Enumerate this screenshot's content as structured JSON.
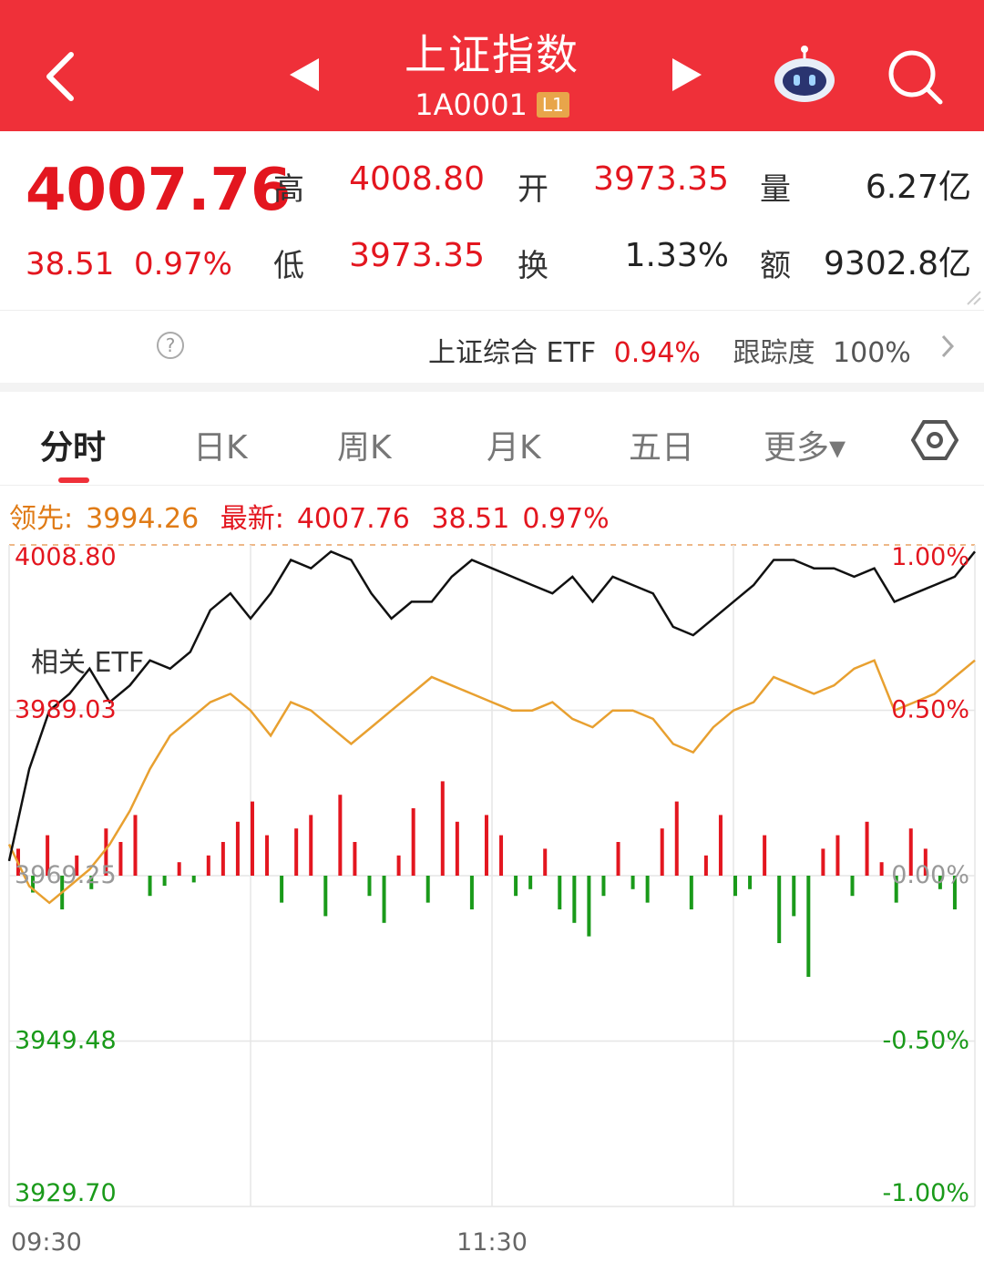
{
  "header": {
    "title": "上证指数",
    "code": "1A0001",
    "level_badge": "L1",
    "bg_color": "#ef3039"
  },
  "quote": {
    "price": "4007.76",
    "change": "38.51",
    "change_pct": "0.97%",
    "high_label": "高",
    "high": "4008.80",
    "low_label": "低",
    "low": "3973.35",
    "open_label": "开",
    "open": "3973.35",
    "turnover_label": "换",
    "turnover": "1.33%",
    "volume_label": "量",
    "volume": "6.27亿",
    "amount_label": "额",
    "amount": "9302.8亿"
  },
  "etf": {
    "label": "相关 ETF",
    "name": "上证综合 ETF",
    "change": "0.94%",
    "tracking_label": "跟踪度",
    "tracking": "100%"
  },
  "tabs": [
    {
      "label": "分时",
      "active": true
    },
    {
      "label": "日K"
    },
    {
      "label": "周K"
    },
    {
      "label": "月K"
    },
    {
      "label": "五日"
    },
    {
      "label": "更多▾"
    }
  ],
  "leader_bar": {
    "lead_label": "领先:",
    "lead_value": "3994.26",
    "latest_label": "最新:",
    "latest_value": "4007.76",
    "change": "38.51",
    "change_pct": "0.97%"
  },
  "chart_data": {
    "type": "line",
    "y_left_ticks": [
      "4008.80",
      "3989.03",
      "3969.25",
      "3949.48",
      "3929.70"
    ],
    "y_right_ticks": [
      "1.00%",
      "0.50%",
      "0.00%",
      "-0.50%",
      "-1.00%"
    ],
    "x_ticks": [
      "09:30",
      "11:30"
    ],
    "ylim": [
      3929.7,
      4008.8
    ],
    "colors": {
      "price": "#111111",
      "leader": "#e8a030",
      "up": "#e3161f",
      "down": "#1a9a1a"
    },
    "series": [
      {
        "x": [
          0,
          5,
          10,
          15,
          20,
          25,
          30,
          35,
          40,
          45,
          50,
          55,
          60,
          65,
          70,
          75,
          80,
          85,
          90,
          95,
          100,
          105,
          110,
          115,
          120,
          125,
          130,
          135,
          140,
          145,
          150,
          155,
          160,
          165,
          170,
          175,
          180,
          185,
          190,
          195,
          200,
          205,
          210,
          215,
          220,
          225,
          230,
          235,
          240
        ],
        "values": [
          3971,
          3982,
          3989,
          3991,
          3994,
          3990,
          3992,
          3995,
          3994,
          3996,
          4001,
          4003,
          4000,
          4003,
          4007,
          4006,
          4008,
          4007,
          4003,
          4000,
          4002,
          4002,
          4005,
          4007,
          4006,
          4005,
          4004,
          4003,
          4005,
          4002,
          4005,
          4004,
          4003,
          3999,
          3998,
          4000,
          4002,
          4004,
          4007,
          4007,
          4006,
          4006,
          4005,
          4006,
          4002,
          4003,
          4004,
          4005,
          4008
        ]
      },
      {
        "x": [
          0,
          5,
          10,
          15,
          20,
          25,
          30,
          35,
          40,
          45,
          50,
          55,
          60,
          65,
          70,
          75,
          80,
          85,
          90,
          95,
          100,
          105,
          110,
          115,
          120,
          125,
          130,
          135,
          140,
          145,
          150,
          155,
          160,
          165,
          170,
          175,
          180,
          185,
          190,
          195,
          200,
          205,
          210,
          215,
          220,
          225,
          230,
          235,
          240
        ],
        "values": [
          3973,
          3968,
          3966,
          3968,
          3970,
          3973,
          3977,
          3982,
          3986,
          3988,
          3990,
          3991,
          3989,
          3986,
          3990,
          3989,
          3987,
          3985,
          3987,
          3989,
          3991,
          3993,
          3992,
          3991,
          3990,
          3989,
          3989,
          3990,
          3988,
          3987,
          3989,
          3989,
          3988,
          3985,
          3984,
          3987,
          3989,
          3990,
          3993,
          3992,
          3991,
          3992,
          3994,
          3995,
          3989,
          3990,
          3991,
          3993,
          3995
        ]
      }
    ],
    "volume": [
      8,
      -5,
      12,
      -10,
      6,
      -4,
      14,
      10,
      18,
      -6,
      -3,
      4,
      -2,
      6,
      10,
      16,
      22,
      12,
      -8,
      14,
      18,
      -12,
      24,
      10,
      -6,
      -14,
      6,
      20,
      -8,
      28,
      16,
      -10,
      18,
      12,
      -6,
      -4,
      8,
      -10,
      -14,
      -18,
      -6,
      10,
      -4,
      -8,
      14,
      22,
      -10,
      6,
      18,
      -6,
      -4,
      12,
      -20,
      -12,
      -30,
      8,
      12,
      -6,
      16,
      4,
      -8,
      14,
      8,
      -4,
      -10
    ]
  }
}
